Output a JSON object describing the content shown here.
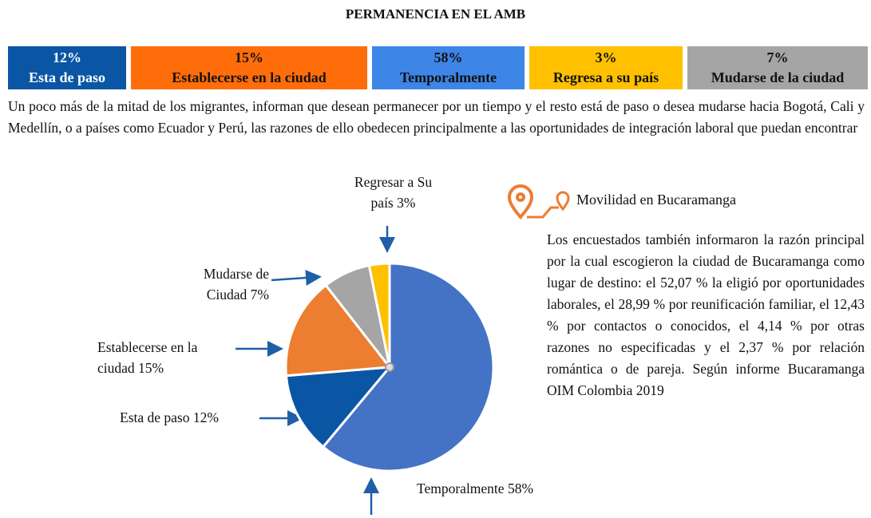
{
  "header": {
    "title": "PERMANENCIA  EN EL AMB",
    "segments": [
      {
        "percent": "12%",
        "label": "Esta de paso",
        "color": "#0a56a5",
        "text_color": "#ffffff"
      },
      {
        "percent": "15%",
        "label": "Establecerse en la ciudad",
        "color": "#ff6d0a",
        "text_color": "#111111"
      },
      {
        "percent": "58%",
        "label": "Temporalmente",
        "color": "#3d85e6",
        "text_color": "#111111"
      },
      {
        "percent": "3%",
        "label": "Regresa a su país",
        "color": "#ffc000",
        "text_color": "#111111"
      },
      {
        "percent": "7%",
        "label": "Mudarse de la ciudad",
        "color": "#a5a5a5",
        "text_color": "#111111"
      }
    ]
  },
  "intro": "Un poco más de la mitad de los migrantes, informan que desean permanecer por un tiempo y el resto está de paso o desea mudarse hacia Bogotá, Cali y Medellín, o a países como Ecuador y Perú, las razones de ello obedecen principalmente a las oportunidades de integración laboral que puedan encontrar",
  "chart_data": {
    "type": "pie",
    "categories": [
      "Temporalmente",
      "Esta de paso",
      "Establecerse en la ciudad",
      "Mudarse de Ciudad",
      "Regresar a Su país"
    ],
    "values": [
      58,
      12,
      15,
      7,
      3
    ],
    "value_labels": [
      "58%",
      "12%",
      "15%",
      "7%",
      "3%"
    ],
    "colors": [
      "#4472c4",
      "#0a56a5",
      "#ed7d31",
      "#a5a5a5",
      "#ffc000"
    ]
  },
  "side": {
    "heading": "Movilidad en Bucaramanga",
    "text": "Los encuestados también informaron la razón principal por la cual escogieron la ciudad de Bucaramanga como lugar de destino: el 52,07 % la eligió por oportunidades laborales, el 28,99 % por reunificación familiar, el 12,43 % por contactos o conocidos, el 4,14 % por otras razones no especificadas y el 2,37 % por relación romántica o de pareja. Según informe Bucaramanga OIM Colombia 2019"
  }
}
